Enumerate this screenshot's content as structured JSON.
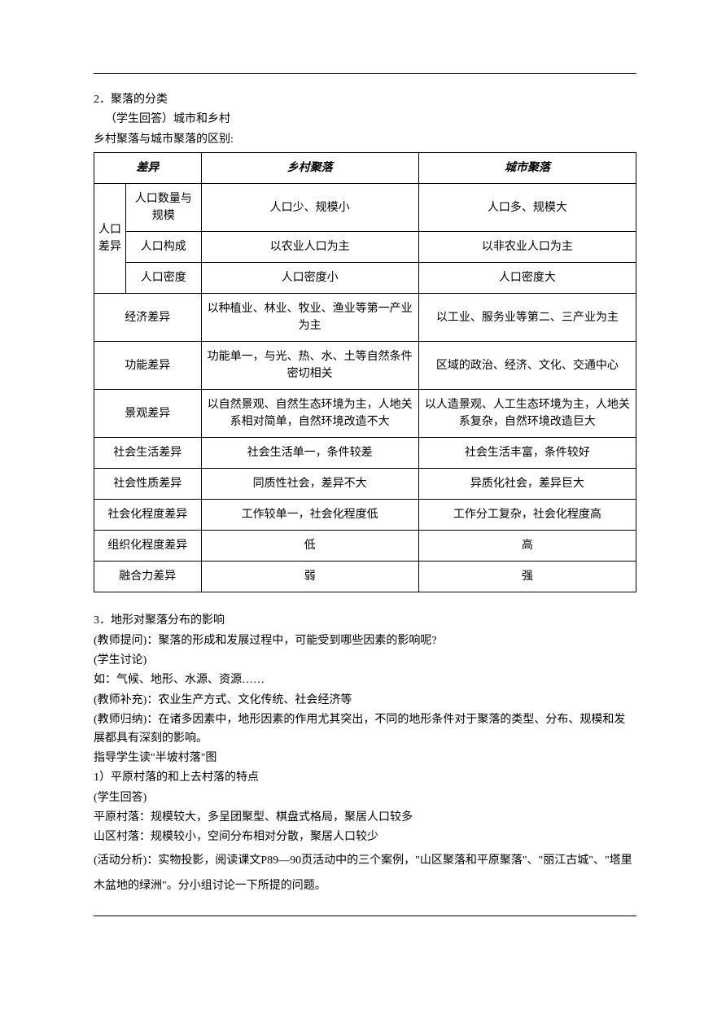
{
  "top": {
    "l1": "2．聚落的分类",
    "l2": "（学生回答）城市和乡村",
    "l3": "乡村聚落与城市聚落的区别:"
  },
  "table": {
    "header": {
      "c1": "差异",
      "c2": "乡村聚落",
      "c3": "城市聚落"
    },
    "rows": [
      {
        "rs": "人口差异",
        "a": "人口数量与规模",
        "b": "人口少、规模小",
        "c": "人口多、规模大"
      },
      {
        "a": "人口构成",
        "b": "以农业人口为主",
        "c": "以非农业人口为主"
      },
      {
        "a": "人口密度",
        "b": "人口密度小",
        "c": "人口密度大"
      },
      {
        "a2": "经济差异",
        "b": "以种植业、林业、牧业、渔业等第一产业为主",
        "c": "以工业、服务业等第二、三产业为主"
      },
      {
        "a2": "功能差异",
        "b": "功能单一，与光、热、水、土等自然条件密切相关",
        "c": "区域的政治、经济、文化、交通中心"
      },
      {
        "a2": "景观差异",
        "b": "以自然景观、自然生态环境为主，人地关系相对简单，自然环境改造不大",
        "c": "以人造景观、人工生态环境为主，人地关系复杂，自然环境改造巨大"
      },
      {
        "a2": "社会生活差异",
        "b": "社会生活单一，条件较差",
        "c": "社会生活丰富，条件较好"
      },
      {
        "a2": "社会性质差异",
        "b": "同质性社会，差异不大",
        "c": "异质化社会，差异巨大"
      },
      {
        "a2": "社会化程度差异",
        "b": "工作较单一，社会化程度低",
        "c": "工作分工复杂，社会化程度高"
      },
      {
        "a2": "组织化程度差异",
        "b": "低",
        "c": "高"
      },
      {
        "a2": "融合力差异",
        "b": "弱",
        "c": "强"
      }
    ]
  },
  "bottom": {
    "l1": "3．地形对聚落分布的影响",
    "l2": "(教师提问)：聚落的形成和发展过程中，可能受到哪些因素的影响呢?",
    "l3": "(学生讨论)",
    "l4": "如：气候、地形、水源、资源……",
    "l5": "(教师补充)：农业生产方式、文化传统、社会经济等",
    "l6": "(教师归纳)：在诸多因素中，地形因素的作用尤其突出，不同的地形条件对于聚落的类型、分布、规模和发展都具有深刻的影响。",
    "l7": "指导学生读\"半坡村落\"图",
    "l8": "1）平原村落的和上去村落的特点",
    "l9": "(学生回答)",
    "l10": "平原村落：规模较大，多呈团聚型、棋盘式格局，聚居人口较多",
    "l11": "山区村落：规模较小，空间分布相对分散，聚居人口较少",
    "l12": "(活动分析)：实物投影，阅读课文P89—90页活动中的三个案例，\"山区聚落和平原聚落\"、\"丽江古城\"、\"塔里木盆地的绿洲\"。分小组讨论一下所提的问题。"
  }
}
